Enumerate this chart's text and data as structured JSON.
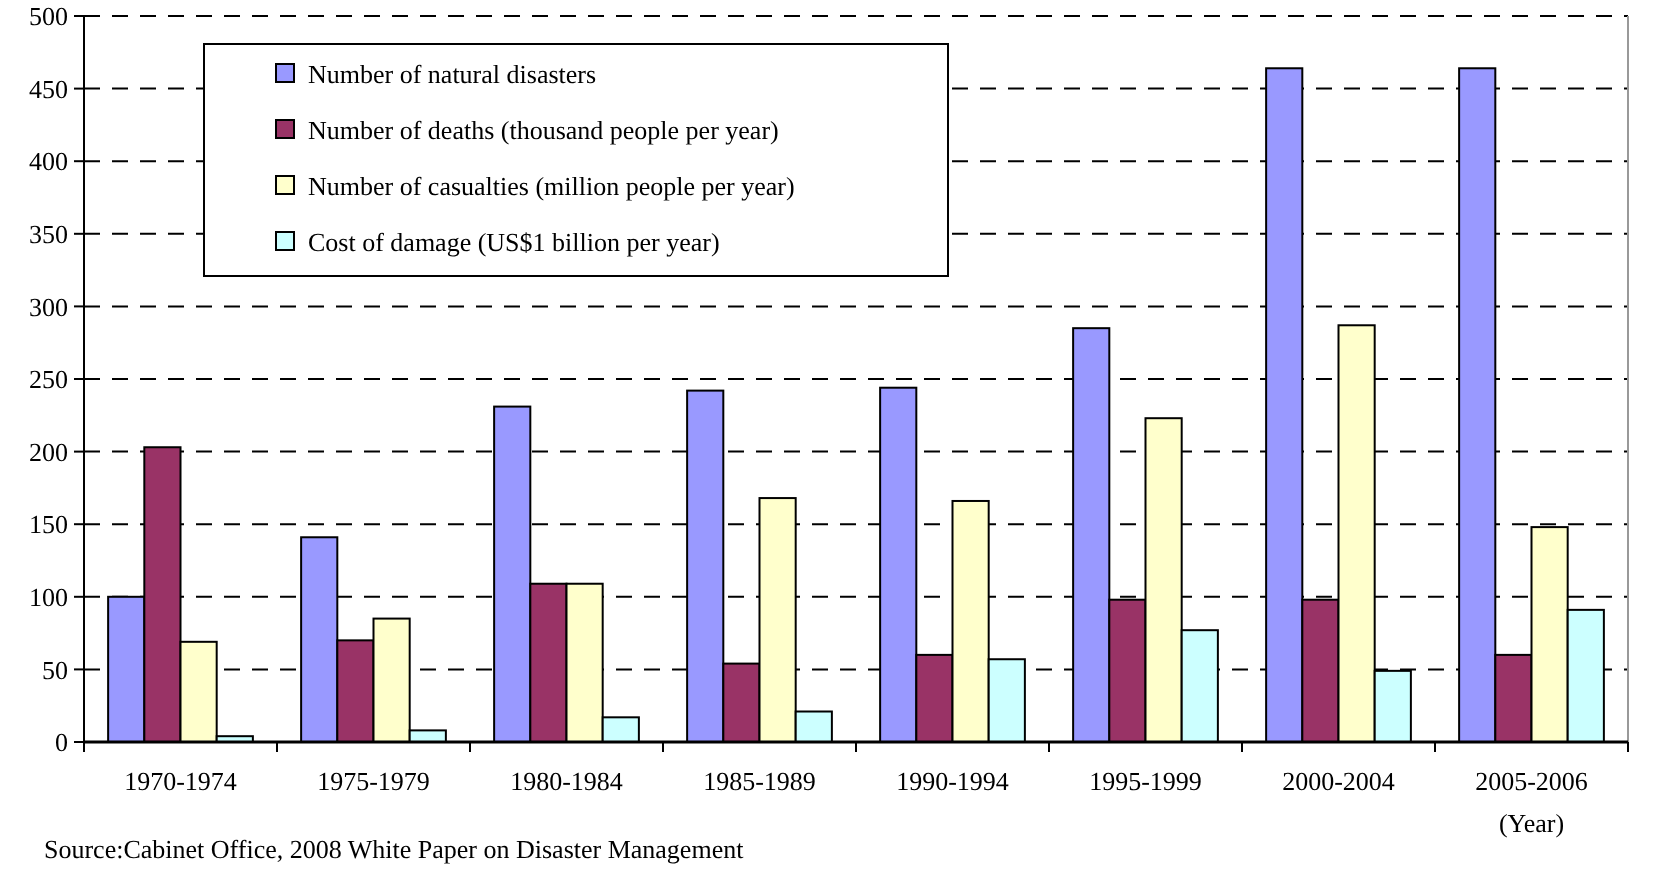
{
  "chart_data": {
    "type": "bar",
    "xlabel": "(Year)",
    "categories": [
      "1970-1974",
      "1975-1979",
      "1980-1984",
      "1985-1989",
      "1990-1994",
      "1995-1999",
      "2000-2004",
      "2005-2006"
    ],
    "series": [
      {
        "name": "Number of natural disasters",
        "color": "#9999ff",
        "values": [
          100,
          141,
          231,
          242,
          244,
          285,
          464,
          464
        ]
      },
      {
        "name": "Number of deaths (thousand people per year)",
        "color": "#993366",
        "values": [
          203,
          70,
          109,
          54,
          60,
          98,
          98,
          60
        ]
      },
      {
        "name": "Number of casualties (million people per year)",
        "color": "#ffffcc",
        "values": [
          69,
          85,
          109,
          168,
          166,
          223,
          287,
          148
        ]
      },
      {
        "name": "Cost of damage (US$1 billion per year)",
        "color": "#ccffff",
        "values": [
          4,
          8,
          17,
          21,
          57,
          77,
          49,
          91
        ]
      }
    ],
    "ylim": [
      0,
      500
    ],
    "yticks": [
      0,
      50,
      100,
      150,
      200,
      250,
      300,
      350,
      400,
      450,
      500
    ],
    "grid": "y",
    "legend": "top left",
    "annotations": [
      "Source:Cabinet Office,  2008 White Paper on Disaster Management"
    ]
  }
}
